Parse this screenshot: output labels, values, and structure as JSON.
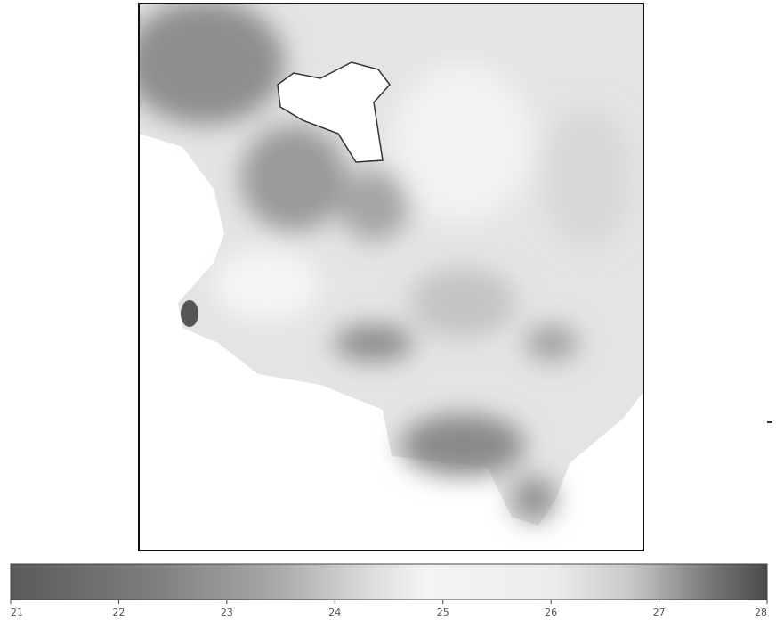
{
  "colorbar": {
    "range": [
      21,
      28
    ],
    "ticks": [
      21,
      22,
      23,
      24,
      25,
      26,
      27,
      28
    ]
  }
}
